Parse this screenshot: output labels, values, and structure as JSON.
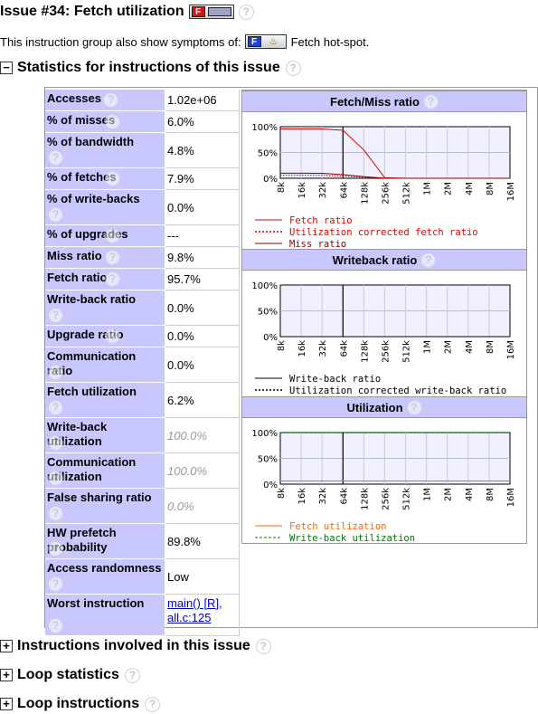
{
  "header": {
    "title": "Issue #34: Fetch utilization",
    "badge_letter": "F",
    "intro_text": "This instruction group also show symptoms of:",
    "symptom_badge_letter": "F",
    "symptom_text": "Fetch hot-spot."
  },
  "help_mark": "?",
  "sections": {
    "statistics": {
      "toggle": "−",
      "title": "Statistics for instructions of this issue"
    },
    "instructions": {
      "toggle": "+",
      "title": "Instructions involved in this issue"
    },
    "loop_statistics": {
      "toggle": "+",
      "title": "Loop statistics"
    },
    "loop_instructions": {
      "toggle": "+",
      "title": "Loop instructions"
    }
  },
  "stats": [
    {
      "label": "Accesses",
      "value": "1.02e+06"
    },
    {
      "label": "% of misses",
      "value": "6.0%"
    },
    {
      "label": "% of bandwidth",
      "value": "4.8%"
    },
    {
      "label": "% of fetches",
      "value": "7.9%"
    },
    {
      "label": "% of write-backs",
      "value": "0.0%"
    },
    {
      "label": "% of upgrades",
      "value": "---"
    },
    {
      "label": "Miss ratio",
      "value": "9.8%"
    },
    {
      "label": "Fetch ratio",
      "value": "95.7%"
    },
    {
      "label": "Write-back ratio",
      "value": "0.0%"
    },
    {
      "label": "Upgrade ratio",
      "value": "0.0%"
    },
    {
      "label": "Communication ratio",
      "value": "0.0%"
    },
    {
      "label": "Fetch utilization",
      "value": "6.2%"
    },
    {
      "label": "Write-back utilization",
      "value": "100.0%"
    },
    {
      "label": "Communication utilization",
      "value": "100.0%"
    },
    {
      "label": "False sharing ratio",
      "value": "0.0%"
    },
    {
      "label": "HW prefetch probability",
      "value": "89.8%"
    },
    {
      "label": "Access randomness",
      "value": "Low"
    },
    {
      "label": "Worst instruction",
      "value": "main() [R], all.c:125"
    }
  ],
  "colors": {
    "header_bg": "#c8c8ff",
    "plot_bg": "#f0f0ff",
    "fetch_ratio": "#dd0000",
    "miss_ratio": "#880000",
    "fetch_utilization": "#ff6600",
    "writeback_utilization": "#007700",
    "writeback_ratio": "#000000"
  },
  "chart_data": [
    {
      "type": "line",
      "title": "Fetch/Miss ratio",
      "x": [
        "8k",
        "16k",
        "32k",
        "64k",
        "128k",
        "256k",
        "512k",
        "1M",
        "2M",
        "4M",
        "8M",
        "16M"
      ],
      "yticks": [
        "0%",
        "50%",
        "100%"
      ],
      "ylim": [
        0,
        100
      ],
      "marker_x": "64k",
      "series": [
        {
          "name": "Fetch ratio",
          "style": "solid",
          "color": "#dd0000",
          "values": [
            95.7,
            95.7,
            95.7,
            93,
            55,
            1,
            0,
            0,
            0,
            0,
            0,
            0
          ]
        },
        {
          "name": "Utilization corrected fetch ratio",
          "style": "dotted",
          "color": "#dd0000",
          "values": [
            6,
            6,
            5.9,
            4,
            2,
            0.2,
            0,
            0,
            0,
            0,
            0,
            0
          ]
        },
        {
          "name": "Miss ratio",
          "style": "solid",
          "color": "#880000",
          "values": [
            9.8,
            9.8,
            9.7,
            7,
            3,
            0.2,
            0,
            0,
            0,
            0,
            0,
            0
          ]
        }
      ]
    },
    {
      "type": "line",
      "title": "Writeback ratio",
      "x": [
        "8k",
        "16k",
        "32k",
        "64k",
        "128k",
        "256k",
        "512k",
        "1M",
        "2M",
        "4M",
        "8M",
        "16M"
      ],
      "yticks": [
        "0%",
        "50%",
        "100%"
      ],
      "ylim": [
        0,
        100
      ],
      "marker_x": "64k",
      "series": [
        {
          "name": "Write-back ratio",
          "style": "solid",
          "color": "#000000",
          "values": [
            0,
            0,
            0,
            0,
            0,
            0,
            0,
            0,
            0,
            0,
            0,
            0
          ]
        },
        {
          "name": "Utilization corrected write-back ratio",
          "style": "dotted",
          "color": "#000000",
          "values": [
            0,
            0,
            0,
            0,
            0,
            0,
            0,
            0,
            0,
            0,
            0,
            0
          ]
        }
      ]
    },
    {
      "type": "line",
      "title": "Utilization",
      "x": [
        "8k",
        "16k",
        "32k",
        "64k",
        "128k",
        "256k",
        "512k",
        "1M",
        "2M",
        "4M",
        "8M",
        "16M"
      ],
      "yticks": [
        "0%",
        "50%",
        "100%"
      ],
      "ylim": [
        0,
        100
      ],
      "marker_x": "64k",
      "series": [
        {
          "name": "Fetch utilization",
          "style": "solid",
          "color": "#ff6600",
          "values": [
            6.2,
            6.2,
            6.2,
            6.2,
            6.2,
            6.2,
            6.2,
            6.2,
            6.2,
            6.2,
            6.2,
            6.2
          ]
        },
        {
          "name": "Write-back utilization",
          "style": "dashed",
          "color": "#007700",
          "values": [
            100,
            100,
            100,
            100,
            100,
            100,
            100,
            100,
            100,
            100,
            100,
            100
          ]
        }
      ]
    }
  ]
}
